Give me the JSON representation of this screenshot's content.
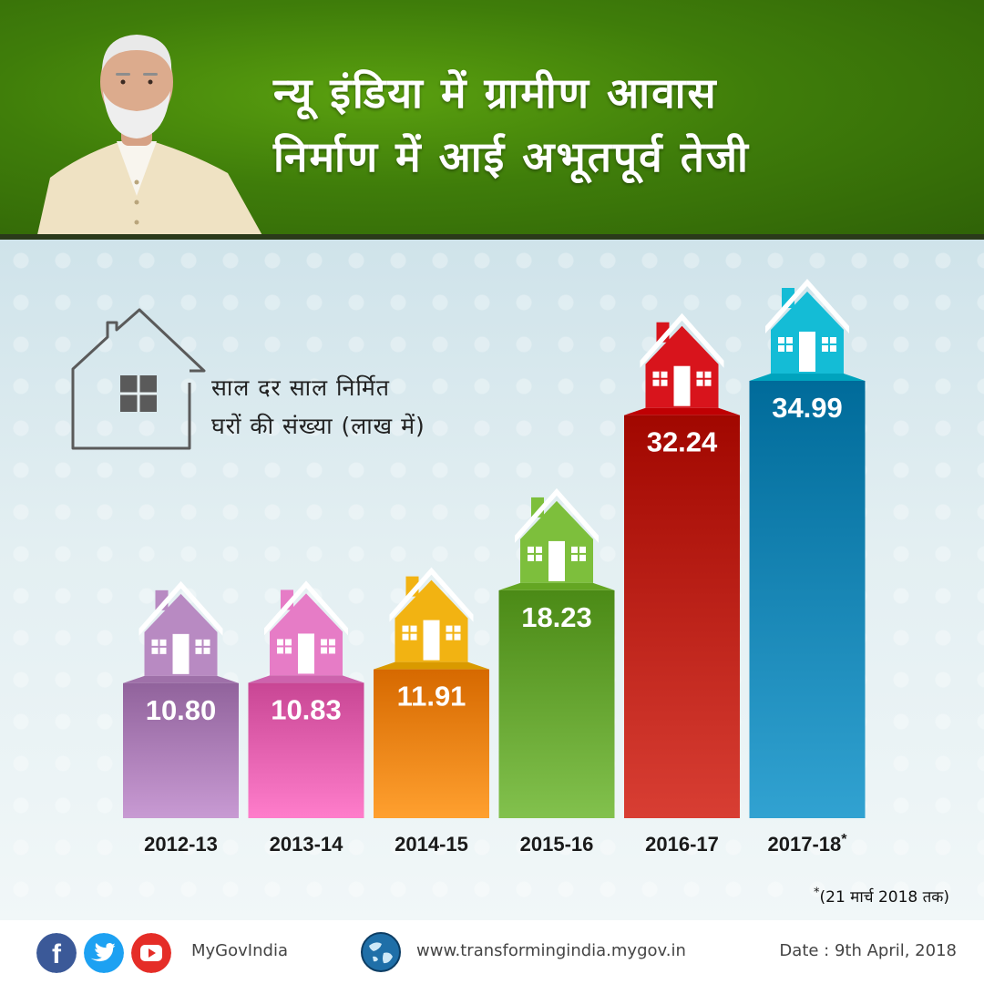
{
  "header": {
    "title_line1": "न्यू इंडिया में ग्रामीण आवास",
    "title_line2": "निर्माण में आई अभूतपूर्व तेजी"
  },
  "caption": {
    "line1": "साल दर साल निर्मित",
    "line2": "घरों की संख्या (लाख में)"
  },
  "chart_data": {
    "type": "bar",
    "categories": [
      "2012-13",
      "2013-14",
      "2014-15",
      "2015-16",
      "2016-17",
      "2017-18*"
    ],
    "values": [
      10.8,
      10.83,
      11.91,
      18.23,
      32.24,
      34.99
    ],
    "value_labels": [
      "10.80",
      "10.83",
      "11.91",
      "18.23",
      "32.24",
      "34.99"
    ],
    "colors": [
      "#a577b0",
      "#dc5aa8",
      "#ea7d0c",
      "#5f9e2a",
      "#b51b10",
      "#0e7fae"
    ],
    "house_colors": [
      "#b88ac2",
      "#e67cc6",
      "#f2b312",
      "#7dbf3c",
      "#d8141c",
      "#14bcd6"
    ],
    "ylabel": "",
    "legend": "none",
    "grid": false
  },
  "footnote": {
    "star": "*",
    "text": "(21 मार्च 2018 तक)"
  },
  "footer": {
    "handle": "MyGovIndia",
    "website": "www.transformingindia.mygov.in",
    "date": "Date : 9th April, 2018",
    "icons": [
      "facebook-icon",
      "twitter-icon",
      "youtube-icon",
      "globe-icon"
    ],
    "icon_colors": [
      "#3b5998",
      "#1da1f2",
      "#e52d27"
    ]
  }
}
